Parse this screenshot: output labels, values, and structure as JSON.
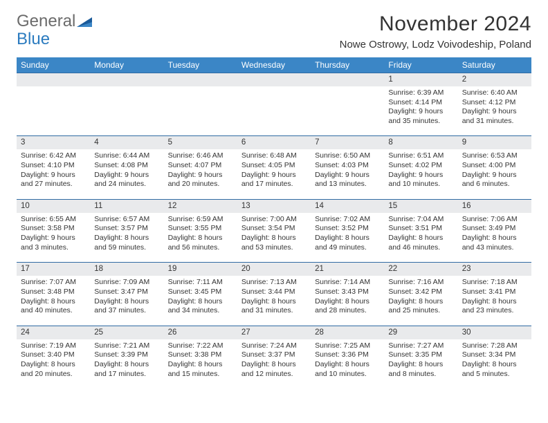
{
  "logo": {
    "word1": "General",
    "word2": "Blue"
  },
  "title": "November 2024",
  "location": "Nowe Ostrowy, Lodz Voivodeship, Poland",
  "colors": {
    "header_bg": "#3b86c6",
    "header_text": "#ffffff",
    "daynum_bg": "#e9eaec",
    "row_divider": "#2f6aa3",
    "logo_gray": "#6b6b6b",
    "logo_blue": "#2b7bbf",
    "text": "#333333",
    "page_bg": "#ffffff"
  },
  "day_headers": [
    "Sunday",
    "Monday",
    "Tuesday",
    "Wednesday",
    "Thursday",
    "Friday",
    "Saturday"
  ],
  "weeks": [
    [
      null,
      null,
      null,
      null,
      null,
      {
        "n": "1",
        "sunrise": "6:39 AM",
        "sunset": "4:14 PM",
        "day_h": "9",
        "day_m": "35"
      },
      {
        "n": "2",
        "sunrise": "6:40 AM",
        "sunset": "4:12 PM",
        "day_h": "9",
        "day_m": "31"
      }
    ],
    [
      {
        "n": "3",
        "sunrise": "6:42 AM",
        "sunset": "4:10 PM",
        "day_h": "9",
        "day_m": "27"
      },
      {
        "n": "4",
        "sunrise": "6:44 AM",
        "sunset": "4:08 PM",
        "day_h": "9",
        "day_m": "24"
      },
      {
        "n": "5",
        "sunrise": "6:46 AM",
        "sunset": "4:07 PM",
        "day_h": "9",
        "day_m": "20"
      },
      {
        "n": "6",
        "sunrise": "6:48 AM",
        "sunset": "4:05 PM",
        "day_h": "9",
        "day_m": "17"
      },
      {
        "n": "7",
        "sunrise": "6:50 AM",
        "sunset": "4:03 PM",
        "day_h": "9",
        "day_m": "13"
      },
      {
        "n": "8",
        "sunrise": "6:51 AM",
        "sunset": "4:02 PM",
        "day_h": "9",
        "day_m": "10"
      },
      {
        "n": "9",
        "sunrise": "6:53 AM",
        "sunset": "4:00 PM",
        "day_h": "9",
        "day_m": "6"
      }
    ],
    [
      {
        "n": "10",
        "sunrise": "6:55 AM",
        "sunset": "3:58 PM",
        "day_h": "9",
        "day_m": "3"
      },
      {
        "n": "11",
        "sunrise": "6:57 AM",
        "sunset": "3:57 PM",
        "day_h": "8",
        "day_m": "59"
      },
      {
        "n": "12",
        "sunrise": "6:59 AM",
        "sunset": "3:55 PM",
        "day_h": "8",
        "day_m": "56"
      },
      {
        "n": "13",
        "sunrise": "7:00 AM",
        "sunset": "3:54 PM",
        "day_h": "8",
        "day_m": "53"
      },
      {
        "n": "14",
        "sunrise": "7:02 AM",
        "sunset": "3:52 PM",
        "day_h": "8",
        "day_m": "49"
      },
      {
        "n": "15",
        "sunrise": "7:04 AM",
        "sunset": "3:51 PM",
        "day_h": "8",
        "day_m": "46"
      },
      {
        "n": "16",
        "sunrise": "7:06 AM",
        "sunset": "3:49 PM",
        "day_h": "8",
        "day_m": "43"
      }
    ],
    [
      {
        "n": "17",
        "sunrise": "7:07 AM",
        "sunset": "3:48 PM",
        "day_h": "8",
        "day_m": "40"
      },
      {
        "n": "18",
        "sunrise": "7:09 AM",
        "sunset": "3:47 PM",
        "day_h": "8",
        "day_m": "37"
      },
      {
        "n": "19",
        "sunrise": "7:11 AM",
        "sunset": "3:45 PM",
        "day_h": "8",
        "day_m": "34"
      },
      {
        "n": "20",
        "sunrise": "7:13 AM",
        "sunset": "3:44 PM",
        "day_h": "8",
        "day_m": "31"
      },
      {
        "n": "21",
        "sunrise": "7:14 AM",
        "sunset": "3:43 PM",
        "day_h": "8",
        "day_m": "28"
      },
      {
        "n": "22",
        "sunrise": "7:16 AM",
        "sunset": "3:42 PM",
        "day_h": "8",
        "day_m": "25"
      },
      {
        "n": "23",
        "sunrise": "7:18 AM",
        "sunset": "3:41 PM",
        "day_h": "8",
        "day_m": "23"
      }
    ],
    [
      {
        "n": "24",
        "sunrise": "7:19 AM",
        "sunset": "3:40 PM",
        "day_h": "8",
        "day_m": "20"
      },
      {
        "n": "25",
        "sunrise": "7:21 AM",
        "sunset": "3:39 PM",
        "day_h": "8",
        "day_m": "17"
      },
      {
        "n": "26",
        "sunrise": "7:22 AM",
        "sunset": "3:38 PM",
        "day_h": "8",
        "day_m": "15"
      },
      {
        "n": "27",
        "sunrise": "7:24 AM",
        "sunset": "3:37 PM",
        "day_h": "8",
        "day_m": "12"
      },
      {
        "n": "28",
        "sunrise": "7:25 AM",
        "sunset": "3:36 PM",
        "day_h": "8",
        "day_m": "10"
      },
      {
        "n": "29",
        "sunrise": "7:27 AM",
        "sunset": "3:35 PM",
        "day_h": "8",
        "day_m": "8"
      },
      {
        "n": "30",
        "sunrise": "7:28 AM",
        "sunset": "3:34 PM",
        "day_h": "8",
        "day_m": "5"
      }
    ]
  ]
}
